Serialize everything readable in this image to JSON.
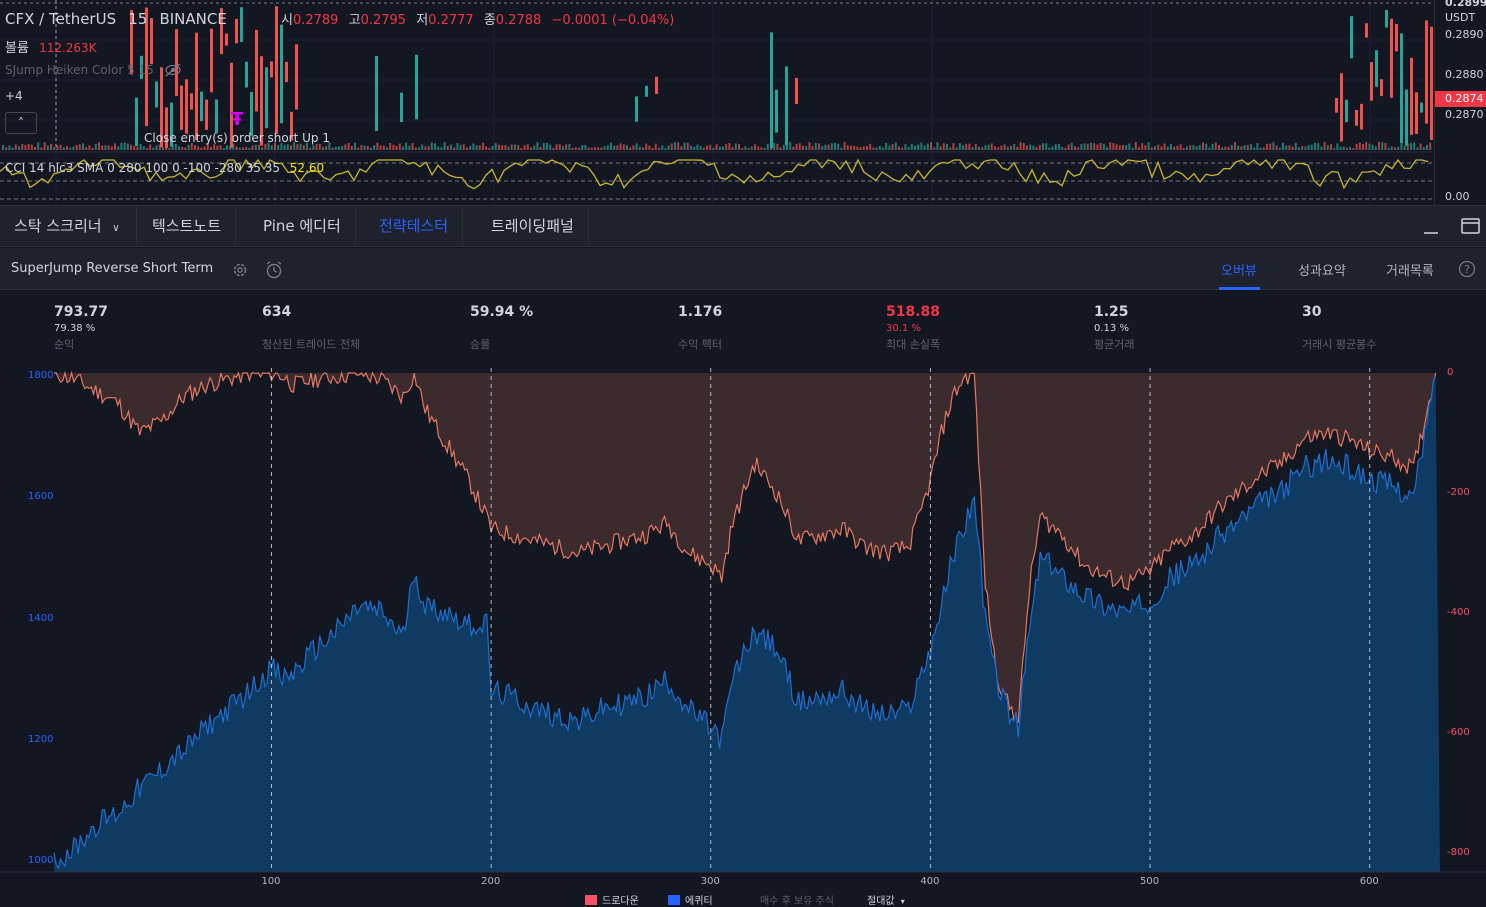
{
  "chart": {
    "symbol": "CFX / TetherUS",
    "interval": "15",
    "exchange": "BINANCE",
    "ohlc": {
      "open_label": "시",
      "open": "0.2789",
      "high_label": "고",
      "high": "0.2795",
      "low_label": "저",
      "low": "0.2777",
      "close_label": "종",
      "close": "0.2788",
      "change": "−0.0001 (−0.04%)"
    },
    "volume_label": "볼륨",
    "volume": "112.263K",
    "indicator": "SJump Heiken Color 5 15",
    "more_indicators": "+4",
    "collapse_icon": "chevron-up-icon",
    "annotation": "Close entry(s) order short Up 1",
    "cci_label": "CCI 14 hlc3 SMA 0 280 100 0 -100 -280 35 35",
    "cci_value": "52.60",
    "price_axis": {
      "currency": "USDT",
      "top_label": "0.2899",
      "labels": [
        "0.2890",
        "0.2880",
        "0.2870"
      ],
      "current": "0.2874",
      "cci_axis_label": "0.00"
    }
  },
  "panel_tabs": [
    {
      "label": "스탁 스크리너",
      "active": false
    },
    {
      "label": "텍스트노트",
      "active": false
    },
    {
      "label": "Pine 에디터",
      "active": false
    },
    {
      "label": "전략테스터",
      "active": true
    },
    {
      "label": "트레이딩패널",
      "active": false
    }
  ],
  "strategy": {
    "name": "SuperJump Reverse Short Term",
    "tabs": [
      {
        "label": "오버뷰",
        "active": true
      },
      {
        "label": "성과요약",
        "active": false
      },
      {
        "label": "거래목록",
        "active": false
      }
    ]
  },
  "metrics": [
    {
      "value": "793.77",
      "sub": "79.38 %",
      "label": "순익",
      "red": false
    },
    {
      "value": "634",
      "sub": "",
      "label": "청산된 트레이드 전체",
      "red": false
    },
    {
      "value": "59.94 %",
      "sub": "",
      "label": "승률",
      "red": false
    },
    {
      "value": "1.176",
      "sub": "",
      "label": "수익 팩터",
      "red": false
    },
    {
      "value": "518.88",
      "sub": "30.1 %",
      "label": "최대 손실폭",
      "red": true
    },
    {
      "value": "1.25",
      "sub": "0.13 %",
      "label": "평균거래",
      "red": false
    },
    {
      "value": "30",
      "sub": "",
      "label": "거래시 평균봉수",
      "red": false
    }
  ],
  "chart_data": {
    "type": "area",
    "x": [
      1,
      10,
      20,
      30,
      40,
      50,
      55,
      60,
      70,
      80,
      90,
      95,
      100,
      105,
      110,
      120,
      130,
      140,
      150,
      160,
      165,
      170,
      180,
      190,
      198,
      200,
      210,
      220,
      230,
      240,
      250,
      260,
      270,
      280,
      290,
      300,
      305,
      310,
      320,
      330,
      340,
      350,
      360,
      370,
      380,
      390,
      395,
      400,
      405,
      410,
      415,
      420,
      425,
      430,
      435,
      440,
      445,
      450,
      460,
      470,
      480,
      490,
      500,
      510,
      520,
      530,
      540,
      550,
      560,
      570,
      580,
      590,
      600,
      610,
      620,
      630
    ],
    "series": [
      {
        "name": "에퀴티",
        "axis": "left",
        "color": "#2962ff",
        "values": [
          1000,
          1020,
          1060,
          1080,
          1120,
          1150,
          1170,
          1180,
          1220,
          1250,
          1280,
          1300,
          1320,
          1300,
          1310,
          1350,
          1380,
          1420,
          1410,
          1370,
          1480,
          1420,
          1410,
          1390,
          1390,
          1280,
          1270,
          1250,
          1240,
          1230,
          1250,
          1260,
          1270,
          1300,
          1250,
          1220,
          1200,
          1300,
          1380,
          1350,
          1260,
          1270,
          1280,
          1250,
          1240,
          1250,
          1300,
          1350,
          1420,
          1500,
          1550,
          1600,
          1400,
          1300,
          1250,
          1220,
          1380,
          1500,
          1470,
          1440,
          1420,
          1410,
          1430,
          1470,
          1490,
          1530,
          1560,
          1590,
          1610,
          1650,
          1660,
          1650,
          1630,
          1620,
          1600,
          1800
        ]
      },
      {
        "name": "드로다운",
        "axis": "right",
        "color": "#f7525f",
        "values": [
          0,
          -10,
          -30,
          -50,
          -100,
          -80,
          -60,
          -40,
          -20,
          -10,
          0,
          -5,
          0,
          -5,
          -20,
          -10,
          -5,
          0,
          -10,
          -40,
          0,
          -60,
          -120,
          -180,
          -240,
          -260,
          -270,
          -280,
          -290,
          -300,
          -290,
          -280,
          -270,
          -250,
          -300,
          -320,
          -340,
          -250,
          -150,
          -200,
          -280,
          -270,
          -260,
          -290,
          -300,
          -290,
          -240,
          -180,
          -100,
          -40,
          -10,
          0,
          -350,
          -500,
          -550,
          -580,
          -360,
          -240,
          -270,
          -320,
          -340,
          -350,
          -330,
          -290,
          -270,
          -230,
          -200,
          -170,
          -150,
          -110,
          -100,
          -110,
          -130,
          -140,
          -160,
          0
        ]
      }
    ],
    "left_ticks": [
      1800,
      1600,
      1400,
      1200,
      1000
    ],
    "right_ticks": [
      0,
      -200,
      -400,
      -600,
      -800
    ],
    "x_ticks": [
      100,
      200,
      300,
      400,
      500,
      600
    ],
    "ylim_left": [
      1000,
      1800
    ],
    "ylim_right": [
      -800,
      0
    ],
    "xlim": [
      1,
      632
    ],
    "grid": "dashed vertical lines at x ticks",
    "legend": [
      {
        "name": "드로다운",
        "color": "#f7525f"
      },
      {
        "name": "에퀴티",
        "color": "#2962ff"
      },
      {
        "name": "매수 후 보유 주식",
        "color": "#5d606b"
      }
    ],
    "legend_placement": "bottom-center",
    "scale_mode": "절대값"
  }
}
